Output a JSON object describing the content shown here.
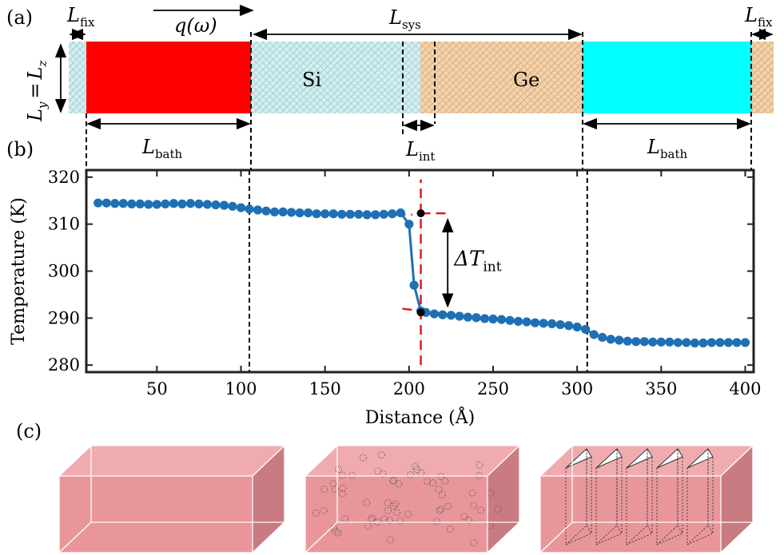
{
  "panel_labels": {
    "a": "(a)",
    "b": "(b)",
    "c": "(c)"
  },
  "panel_a": {
    "L_fix": {
      "main": "L",
      "sub": "fix"
    },
    "q_omega": "q(ω)",
    "L_sys": {
      "main": "L",
      "sub": "sys"
    },
    "L_yz": "Ly = Lz",
    "L_yz_parts": {
      "Ly": "L",
      "y": "y",
      "eq": "=",
      "Lz": "L",
      "z": "z"
    },
    "si_label": "Si",
    "ge_label": "Ge",
    "L_bath": {
      "main": "L",
      "sub": "bath"
    },
    "L_int": {
      "main": "L",
      "sub": "int"
    },
    "colors": {
      "hot_bath": "#ff0000",
      "cold_bath": "#00ffff",
      "si": "#bfe0e4",
      "ge": "#f0caa0"
    }
  },
  "panel_c": {
    "face_color": "#e9969a",
    "side_color": "#c97b82",
    "top_color": "#f0abae"
  },
  "chart_data": {
    "type": "line",
    "xlabel": "Distance (Å)",
    "ylabel": "Temperature (K)",
    "xlim": [
      8,
      405
    ],
    "ylim": [
      278.5,
      321.5
    ],
    "xticks": [
      50,
      100,
      150,
      200,
      250,
      300,
      350,
      400
    ],
    "yticks": [
      280,
      290,
      300,
      310,
      320
    ],
    "series": [
      {
        "color": "#1f6fb5",
        "x": [
          15,
          20,
          25,
          30,
          35,
          40,
          45,
          50,
          55,
          60,
          65,
          70,
          75,
          80,
          85,
          90,
          95,
          100,
          105,
          110,
          115,
          120,
          125,
          130,
          135,
          140,
          145,
          150,
          155,
          160,
          165,
          170,
          175,
          180,
          185,
          190,
          195,
          200,
          203,
          207,
          210,
          215,
          220,
          225,
          230,
          235,
          240,
          245,
          250,
          255,
          260,
          265,
          270,
          275,
          280,
          285,
          290,
          295,
          300,
          305,
          310,
          315,
          320,
          325,
          330,
          335,
          340,
          345,
          350,
          355,
          360,
          365,
          370,
          375,
          380,
          385,
          390,
          395,
          400
        ],
        "y": [
          314.5,
          314.5,
          314.4,
          314.4,
          314.3,
          314.3,
          314.2,
          314.2,
          314.3,
          314.4,
          314.3,
          314.4,
          314.3,
          314.2,
          314.1,
          314.0,
          313.8,
          313.5,
          313.2,
          313.0,
          312.8,
          312.6,
          312.6,
          312.5,
          312.4,
          312.4,
          312.2,
          312.2,
          312.2,
          312.1,
          312.1,
          312.1,
          312.0,
          312.0,
          312.1,
          312.2,
          312.4,
          310.0,
          297.0,
          291.5,
          291.2,
          290.9,
          290.7,
          290.6,
          290.4,
          290.2,
          290.1,
          289.9,
          289.8,
          289.7,
          289.5,
          289.3,
          289.2,
          289.0,
          288.9,
          288.8,
          288.6,
          288.4,
          288.1,
          287.6,
          286.5,
          285.9,
          285.5,
          285.3,
          285.1,
          285.0,
          285.0,
          284.9,
          284.9,
          284.9,
          284.8,
          284.8,
          284.7,
          284.7,
          284.8,
          284.8,
          284.8,
          284.8,
          284.8
        ]
      }
    ],
    "fit_lines": [
      {
        "color": "#e41a1c",
        "x": [
          138,
          202
        ],
        "y": [
          312.3,
          312.0
        ]
      },
      {
        "color": "#e41a1c",
        "x": [
          196,
          262
        ],
        "y": [
          292.0,
          289.3
        ]
      },
      {
        "color": "#e41a1c",
        "x": [
          207,
          207
        ],
        "y": [
          280.0,
          319.5
        ]
      },
      {
        "color": "#e41a1c",
        "x": [
          207,
          225
        ],
        "y": [
          312.3,
          312.3
        ]
      }
    ],
    "interface_points": [
      {
        "x": 207,
        "y": 312.3
      },
      {
        "x": 207,
        "y": 291.2
      }
    ],
    "vlines_x": [
      105,
      306
    ],
    "annotation": {
      "main": "ΔT",
      "sub": "int",
      "x": 223,
      "y1": 311.0,
      "y2": 292.5
    }
  }
}
